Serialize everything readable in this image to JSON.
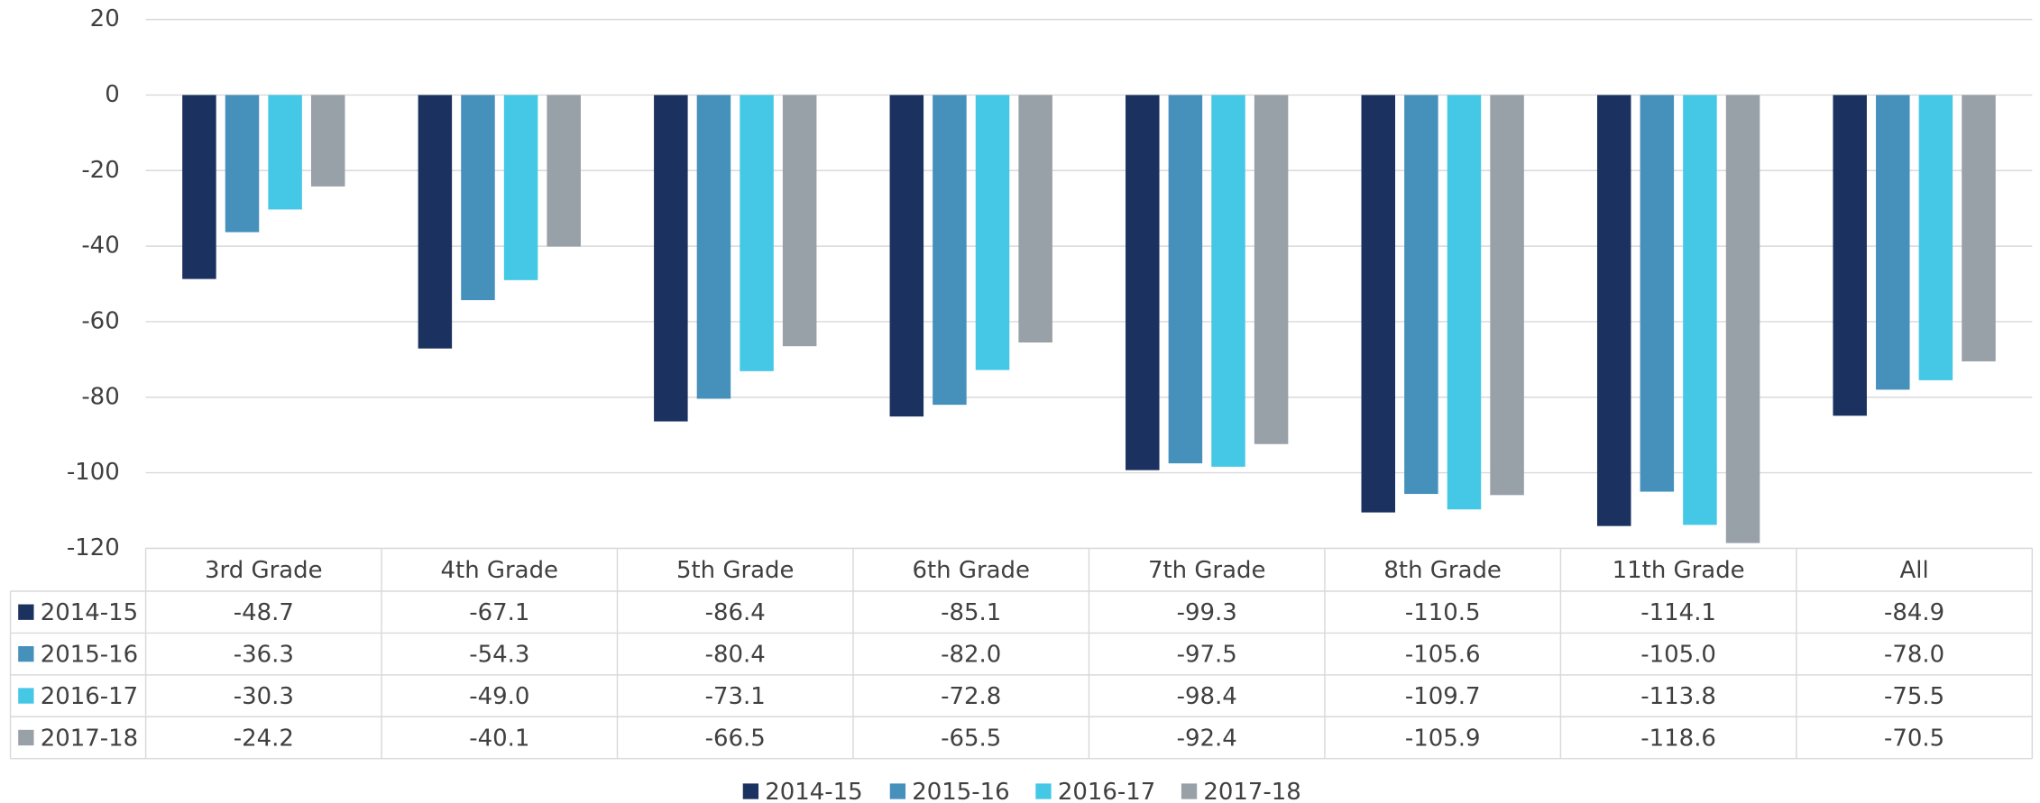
{
  "chart_data": {
    "type": "bar",
    "categories": [
      "3rd Grade",
      "4th Grade",
      "5th Grade",
      "6th Grade",
      "7th Grade",
      "8th Grade",
      "11th Grade",
      "All"
    ],
    "series": [
      {
        "name": "2014-15",
        "color": "#1b3260",
        "values": [
          -48.7,
          -67.1,
          -86.4,
          -85.1,
          -99.3,
          -110.5,
          -114.1,
          -84.9
        ],
        "value_labels": [
          "-48.7",
          "-67.1",
          "-86.4",
          "-85.1",
          "-99.3",
          "-110.5",
          "-114.1",
          "-84.9"
        ]
      },
      {
        "name": "2015-16",
        "color": "#4690bc",
        "values": [
          -36.3,
          -54.3,
          -80.4,
          -82.0,
          -97.5,
          -105.6,
          -105.0,
          -78.0
        ],
        "value_labels": [
          "-36.3",
          "-54.3",
          "-80.4",
          "-82.0",
          "-97.5",
          "-105.6",
          "-105.0",
          "-78.0"
        ]
      },
      {
        "name": "2016-17",
        "color": "#45c8e6",
        "values": [
          -30.3,
          -49.0,
          -73.1,
          -72.8,
          -98.4,
          -109.7,
          -113.8,
          -75.5
        ],
        "value_labels": [
          "-30.3",
          "-49.0",
          "-73.1",
          "-72.8",
          "-98.4",
          "-109.7",
          "-113.8",
          "-75.5"
        ]
      },
      {
        "name": "2017-18",
        "color": "#98a0a8",
        "values": [
          -24.2,
          -40.1,
          -66.5,
          -65.5,
          -92.4,
          -105.9,
          -118.6,
          -70.5
        ],
        "value_labels": [
          "-24.2",
          "-40.1",
          "-66.5",
          "-65.5",
          "-92.4",
          "-105.9",
          "-118.6",
          "-70.5"
        ]
      }
    ],
    "ylim": [
      -120,
      20
    ],
    "yticks": [
      20,
      0,
      -20,
      -40,
      -60,
      -80,
      -100,
      -120
    ],
    "grid": true,
    "legend": "bottom"
  }
}
